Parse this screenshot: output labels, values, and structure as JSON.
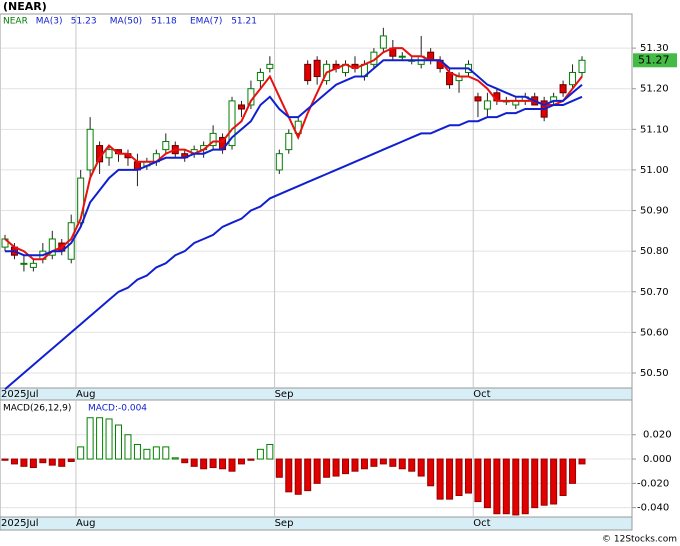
{
  "chart_data": {
    "type": "candlestick",
    "title": "(NEAR)",
    "symbol": "NEAR",
    "symbol_color": "#008000",
    "candles": [
      [
        50.81,
        50.84,
        50.8,
        50.83
      ],
      [
        50.81,
        50.82,
        50.78,
        50.79
      ],
      [
        50.77,
        50.79,
        50.75,
        50.77
      ],
      [
        50.76,
        50.78,
        50.75,
        50.77
      ],
      [
        50.78,
        50.82,
        50.77,
        50.8
      ],
      [
        50.79,
        50.85,
        50.78,
        50.83
      ],
      [
        50.82,
        50.83,
        50.79,
        50.8
      ],
      [
        50.78,
        50.89,
        50.77,
        50.87
      ],
      [
        50.87,
        51.0,
        50.86,
        50.98
      ],
      [
        51.0,
        51.13,
        50.98,
        51.1
      ],
      [
        51.06,
        51.07,
        50.99,
        51.02
      ],
      [
        51.03,
        51.06,
        51.01,
        51.05
      ],
      [
        51.05,
        51.05,
        51.02,
        51.04
      ],
      [
        51.04,
        51.05,
        51.01,
        51.03
      ],
      [
        51.02,
        51.04,
        50.96,
        51.0
      ],
      [
        51.01,
        51.03,
        51.0,
        51.02
      ],
      [
        51.02,
        51.05,
        51.01,
        51.04
      ],
      [
        51.05,
        51.09,
        51.04,
        51.07
      ],
      [
        51.06,
        51.07,
        51.03,
        51.04
      ],
      [
        51.04,
        51.05,
        51.02,
        51.03
      ],
      [
        51.04,
        51.06,
        51.03,
        51.05
      ],
      [
        51.05,
        51.07,
        51.03,
        51.06
      ],
      [
        51.06,
        51.11,
        51.05,
        51.09
      ],
      [
        51.08,
        51.09,
        51.04,
        51.05
      ],
      [
        51.06,
        51.18,
        51.05,
        51.17
      ],
      [
        51.16,
        51.17,
        51.13,
        51.15
      ],
      [
        51.16,
        51.22,
        51.15,
        51.2
      ],
      [
        51.22,
        51.25,
        51.2,
        51.24
      ],
      [
        51.25,
        51.28,
        51.24,
        51.26
      ],
      [
        51.0,
        51.05,
        50.99,
        51.04
      ],
      [
        51.05,
        51.1,
        51.04,
        51.09
      ],
      [
        51.09,
        51.13,
        51.08,
        51.12
      ],
      [
        51.26,
        51.27,
        51.21,
        51.22
      ],
      [
        51.27,
        51.28,
        51.21,
        51.23
      ],
      [
        51.22,
        51.27,
        51.21,
        51.26
      ],
      [
        51.26,
        51.27,
        51.24,
        51.25
      ],
      [
        51.24,
        51.27,
        51.23,
        51.26
      ],
      [
        51.26,
        51.28,
        51.24,
        51.25
      ],
      [
        51.23,
        51.27,
        51.22,
        51.26
      ],
      [
        51.26,
        51.3,
        51.25,
        51.29
      ],
      [
        51.3,
        51.35,
        51.29,
        51.33
      ],
      [
        51.3,
        51.32,
        51.27,
        51.28
      ],
      [
        51.28,
        51.29,
        51.27,
        51.28
      ],
      [
        51.27,
        51.28,
        51.26,
        51.27
      ],
      [
        51.26,
        51.33,
        51.25,
        51.28
      ],
      [
        51.29,
        51.3,
        51.26,
        51.27
      ],
      [
        51.27,
        51.28,
        51.24,
        51.25
      ],
      [
        51.24,
        51.25,
        51.2,
        51.21
      ],
      [
        51.22,
        51.24,
        51.19,
        51.23
      ],
      [
        51.24,
        51.27,
        51.23,
        51.26
      ],
      [
        51.18,
        51.19,
        51.13,
        51.17
      ],
      [
        51.15,
        51.19,
        51.13,
        51.17
      ],
      [
        51.19,
        51.2,
        51.16,
        51.17
      ],
      [
        51.17,
        51.18,
        51.16,
        51.17
      ],
      [
        51.16,
        51.18,
        51.15,
        51.17
      ],
      [
        51.17,
        51.19,
        51.16,
        51.18
      ],
      [
        51.18,
        51.19,
        51.16,
        51.16
      ],
      [
        51.17,
        51.18,
        51.12,
        51.13
      ],
      [
        51.17,
        51.19,
        51.16,
        51.18
      ],
      [
        51.21,
        51.22,
        51.18,
        51.19
      ],
      [
        51.21,
        51.26,
        51.2,
        51.24
      ],
      [
        51.24,
        51.28,
        51.23,
        51.27
      ]
    ],
    "up_color": "#008000",
    "down_color": "#e00000",
    "series": [
      {
        "name": "MA(3)",
        "last": 51.23,
        "color": "#e81010",
        "values": [
          50.83,
          50.81,
          50.8,
          50.78,
          50.78,
          50.8,
          50.81,
          50.83,
          50.88,
          50.98,
          51.03,
          51.06,
          51.04,
          51.04,
          51.02,
          51.02,
          51.02,
          51.04,
          51.05,
          51.05,
          51.04,
          51.05,
          51.07,
          51.07,
          51.1,
          51.12,
          51.17,
          51.2,
          51.23,
          51.18,
          51.13,
          51.08,
          51.14,
          51.19,
          51.24,
          51.25,
          51.26,
          51.25,
          51.26,
          51.27,
          51.29,
          51.3,
          51.3,
          51.28,
          51.28,
          51.27,
          51.27,
          51.24,
          51.23,
          51.23,
          51.22,
          51.2,
          51.17,
          51.17,
          51.17,
          51.17,
          51.17,
          51.16,
          51.16,
          51.17,
          51.2,
          51.23
        ]
      },
      {
        "name": "MA(50)",
        "last": 51.18,
        "color": "#1020d0",
        "values": [
          50.46,
          50.48,
          50.5,
          50.52,
          50.54,
          50.56,
          50.58,
          50.6,
          50.62,
          50.64,
          50.66,
          50.68,
          50.7,
          50.71,
          50.73,
          50.74,
          50.76,
          50.77,
          50.79,
          50.8,
          50.82,
          50.83,
          50.84,
          50.86,
          50.87,
          50.88,
          50.9,
          50.91,
          50.93,
          50.94,
          50.95,
          50.96,
          50.97,
          50.98,
          50.99,
          51.0,
          51.01,
          51.02,
          51.03,
          51.04,
          51.05,
          51.06,
          51.07,
          51.08,
          51.09,
          51.09,
          51.1,
          51.11,
          51.11,
          51.12,
          51.12,
          51.13,
          51.13,
          51.14,
          51.14,
          51.15,
          51.15,
          51.15,
          51.16,
          51.16,
          51.17,
          51.18
        ]
      },
      {
        "name": "EMA(7)",
        "last": 51.21,
        "color": "#1020d0",
        "values": [
          50.8,
          50.8,
          50.79,
          50.79,
          50.79,
          50.8,
          50.8,
          50.82,
          50.86,
          50.92,
          50.95,
          50.98,
          51.0,
          51.0,
          51.0,
          51.01,
          51.02,
          51.03,
          51.03,
          51.03,
          51.04,
          51.04,
          51.05,
          51.05,
          51.08,
          51.1,
          51.12,
          51.16,
          51.18,
          51.15,
          51.13,
          51.13,
          51.15,
          51.17,
          51.19,
          51.21,
          51.22,
          51.23,
          51.23,
          51.25,
          51.27,
          51.27,
          51.27,
          51.27,
          51.27,
          51.27,
          51.27,
          51.25,
          51.25,
          51.25,
          51.23,
          51.21,
          51.2,
          51.19,
          51.18,
          51.18,
          51.17,
          51.16,
          51.17,
          51.17,
          51.19,
          51.21
        ]
      }
    ],
    "ylim": [
      50.463,
      51.384
    ],
    "yticks": [
      {
        "value": 50.5,
        "label": "50.50"
      },
      {
        "value": 50.6,
        "label": "50.60"
      },
      {
        "value": 50.7,
        "label": "50.70"
      },
      {
        "value": 50.8,
        "label": "50.80"
      },
      {
        "value": 50.9,
        "label": "50.90"
      },
      {
        "value": 51.0,
        "label": "51.00"
      },
      {
        "value": 51.1,
        "label": "51.10"
      },
      {
        "value": 51.2,
        "label": "51.20"
      },
      {
        "value": 51.3,
        "label": "51.30"
      }
    ],
    "xticks": [
      {
        "index": 0,
        "label": "2025Jul"
      },
      {
        "index": 8,
        "label": "Aug"
      },
      {
        "index": 29,
        "label": "Sep"
      },
      {
        "index": 50,
        "label": "Oct"
      }
    ],
    "macd": {
      "title": "MACD(26,12,9)",
      "readout": "MACD:-0.004",
      "values": [
        -0.001,
        -0.004,
        -0.006,
        -0.007,
        -0.003,
        -0.005,
        -0.006,
        -0.002,
        0.01,
        0.034,
        0.034,
        0.033,
        0.028,
        0.02,
        0.012,
        0.008,
        0.01,
        0.01,
        0.001,
        -0.003,
        -0.006,
        -0.008,
        -0.007,
        -0.008,
        -0.01,
        -0.004,
        -0.001,
        0.008,
        0.012,
        -0.015,
        -0.027,
        -0.029,
        -0.026,
        -0.02,
        -0.015,
        -0.014,
        -0.012,
        -0.01,
        -0.008,
        -0.006,
        -0.004,
        -0.006,
        -0.008,
        -0.01,
        -0.014,
        -0.022,
        -0.033,
        -0.033,
        -0.03,
        -0.028,
        -0.035,
        -0.04,
        -0.045,
        -0.045,
        -0.046,
        -0.045,
        -0.04,
        -0.038,
        -0.037,
        -0.03,
        -0.02,
        -0.004
      ],
      "ylim": [
        -0.0477,
        0.0486
      ],
      "yticks": [
        {
          "value": 0.02,
          "label": "0.020"
        },
        {
          "value": 0,
          "label": "0.000"
        },
        {
          "value": -0.02,
          "label": "-0.020"
        },
        {
          "value": -0.04,
          "label": "-0.040"
        }
      ]
    },
    "grid": true,
    "footer": "© 12Stocks.com"
  }
}
